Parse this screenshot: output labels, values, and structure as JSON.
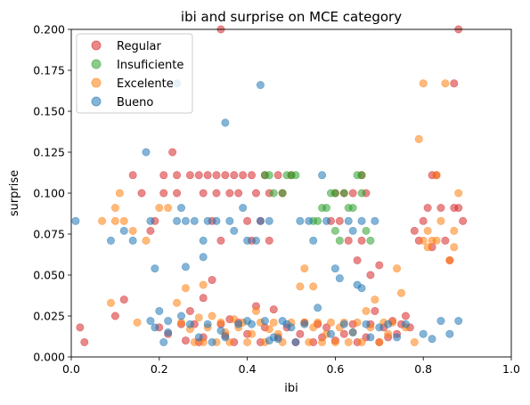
{
  "chart_data": {
    "type": "scatter",
    "title": "ibi and surprise on MCE category",
    "xlabel": "ibi",
    "ylabel": "surprise",
    "xlim": [
      0.0,
      1.0
    ],
    "ylim": [
      0.0,
      0.2
    ],
    "xticks": [
      "0.0",
      "0.2",
      "0.4",
      "0.6",
      "0.8",
      "1.0"
    ],
    "yticks": [
      "0.000",
      "0.025",
      "0.050",
      "0.075",
      "0.100",
      "0.125",
      "0.150",
      "0.175",
      "0.200"
    ],
    "grid": false,
    "legend_position": "top-left",
    "series": [
      {
        "name": "Regular",
        "color": "#d62728",
        "points": [
          [
            0.02,
            0.018
          ],
          [
            0.03,
            0.009
          ],
          [
            0.1,
            0.025
          ],
          [
            0.12,
            0.035
          ],
          [
            0.14,
            0.111
          ],
          [
            0.16,
            0.1
          ],
          [
            0.18,
            0.077
          ],
          [
            0.19,
            0.083
          ],
          [
            0.2,
            0.018
          ],
          [
            0.21,
            0.111
          ],
          [
            0.21,
            0.1
          ],
          [
            0.22,
            0.014
          ],
          [
            0.23,
            0.125
          ],
          [
            0.24,
            0.111
          ],
          [
            0.24,
            0.1
          ],
          [
            0.25,
            0.02
          ],
          [
            0.26,
            0.01
          ],
          [
            0.27,
            0.111
          ],
          [
            0.27,
            0.028
          ],
          [
            0.28,
            0.02
          ],
          [
            0.29,
            0.009
          ],
          [
            0.29,
            0.111
          ],
          [
            0.3,
            0.1
          ],
          [
            0.3,
            0.012
          ],
          [
            0.3,
            0.036
          ],
          [
            0.31,
            0.111
          ],
          [
            0.32,
            0.083
          ],
          [
            0.32,
            0.047
          ],
          [
            0.33,
            0.111
          ],
          [
            0.33,
            0.1
          ],
          [
            0.34,
            0.2
          ],
          [
            0.34,
            0.02
          ],
          [
            0.34,
            0.071
          ],
          [
            0.35,
            0.111
          ],
          [
            0.35,
            0.013
          ],
          [
            0.36,
            0.1
          ],
          [
            0.36,
            0.023
          ],
          [
            0.37,
            0.111
          ],
          [
            0.37,
            0.009
          ],
          [
            0.38,
            0.1
          ],
          [
            0.38,
            0.021
          ],
          [
            0.39,
            0.111
          ],
          [
            0.4,
            0.083
          ],
          [
            0.4,
            0.014
          ],
          [
            0.41,
            0.111
          ],
          [
            0.41,
            0.071
          ],
          [
            0.42,
            0.1
          ],
          [
            0.42,
            0.031
          ],
          [
            0.43,
            0.083
          ],
          [
            0.43,
            0.009
          ],
          [
            0.44,
            0.111
          ],
          [
            0.44,
            0.018
          ],
          [
            0.45,
            0.1
          ],
          [
            0.45,
            0.071
          ],
          [
            0.46,
            0.029
          ],
          [
            0.47,
            0.111
          ],
          [
            0.47,
            0.012
          ],
          [
            0.48,
            0.1
          ],
          [
            0.49,
            0.018
          ],
          [
            0.5,
            0.111
          ],
          [
            0.51,
            0.009
          ],
          [
            0.52,
            0.014
          ],
          [
            0.53,
            0.021
          ],
          [
            0.55,
            0.009
          ],
          [
            0.56,
            0.02
          ],
          [
            0.57,
            0.012
          ],
          [
            0.58,
            0.018
          ],
          [
            0.59,
            0.083
          ],
          [
            0.6,
            0.1
          ],
          [
            0.6,
            0.01
          ],
          [
            0.61,
            0.083
          ],
          [
            0.62,
            0.1
          ],
          [
            0.62,
            0.014
          ],
          [
            0.63,
            0.071
          ],
          [
            0.64,
            0.1
          ],
          [
            0.64,
            0.02
          ],
          [
            0.65,
            0.059
          ],
          [
            0.65,
            0.009
          ],
          [
            0.66,
            0.111
          ],
          [
            0.66,
            0.071
          ],
          [
            0.67,
            0.1
          ],
          [
            0.67,
            0.012
          ],
          [
            0.68,
            0.05
          ],
          [
            0.68,
            0.02
          ],
          [
            0.69,
            0.028
          ],
          [
            0.7,
            0.056
          ],
          [
            0.7,
            0.009
          ],
          [
            0.71,
            0.018
          ],
          [
            0.72,
            0.012
          ],
          [
            0.73,
            0.022
          ],
          [
            0.74,
            0.014
          ],
          [
            0.75,
            0.02
          ],
          [
            0.76,
            0.025
          ],
          [
            0.77,
            0.018
          ],
          [
            0.78,
            0.077
          ],
          [
            0.79,
            0.071
          ],
          [
            0.8,
            0.083
          ],
          [
            0.81,
            0.091
          ],
          [
            0.82,
            0.111
          ],
          [
            0.82,
            0.067
          ],
          [
            0.83,
            0.111
          ],
          [
            0.84,
            0.091
          ],
          [
            0.85,
            0.071
          ],
          [
            0.86,
            0.059
          ],
          [
            0.87,
            0.091
          ],
          [
            0.87,
            0.167
          ],
          [
            0.88,
            0.2
          ],
          [
            0.88,
            0.091
          ],
          [
            0.89,
            0.083
          ]
        ]
      },
      {
        "name": "Insuficiente",
        "color": "#2ca02c",
        "points": [
          [
            0.44,
            0.111
          ],
          [
            0.45,
            0.111
          ],
          [
            0.46,
            0.1
          ],
          [
            0.48,
            0.1
          ],
          [
            0.49,
            0.111
          ],
          [
            0.5,
            0.111
          ],
          [
            0.51,
            0.111
          ],
          [
            0.55,
            0.083
          ],
          [
            0.56,
            0.083
          ],
          [
            0.57,
            0.091
          ],
          [
            0.58,
            0.091
          ],
          [
            0.59,
            0.1
          ],
          [
            0.6,
            0.077
          ],
          [
            0.6,
            0.1
          ],
          [
            0.61,
            0.071
          ],
          [
            0.62,
            0.1
          ],
          [
            0.63,
            0.091
          ],
          [
            0.64,
            0.091
          ],
          [
            0.65,
            0.111
          ],
          [
            0.66,
            0.1
          ],
          [
            0.66,
            0.111
          ],
          [
            0.67,
            0.077
          ],
          [
            0.68,
            0.071
          ]
        ]
      },
      {
        "name": "Excelente",
        "color": "#ff7f0e",
        "points": [
          [
            0.07,
            0.083
          ],
          [
            0.09,
            0.033
          ],
          [
            0.1,
            0.091
          ],
          [
            0.1,
            0.083
          ],
          [
            0.11,
            0.1
          ],
          [
            0.12,
            0.083
          ],
          [
            0.14,
            0.077
          ],
          [
            0.15,
            0.021
          ],
          [
            0.17,
            0.071
          ],
          [
            0.2,
            0.091
          ],
          [
            0.22,
            0.091
          ],
          [
            0.24,
            0.033
          ],
          [
            0.25,
            0.021
          ],
          [
            0.26,
            0.042
          ],
          [
            0.27,
            0.017
          ],
          [
            0.28,
            0.009
          ],
          [
            0.29,
            0.024
          ],
          [
            0.3,
            0.009
          ],
          [
            0.3,
            0.044
          ],
          [
            0.31,
            0.018
          ],
          [
            0.32,
            0.025
          ],
          [
            0.33,
            0.009
          ],
          [
            0.34,
            0.021
          ],
          [
            0.35,
            0.015
          ],
          [
            0.36,
            0.009
          ],
          [
            0.37,
            0.023
          ],
          [
            0.38,
            0.018
          ],
          [
            0.39,
            0.021
          ],
          [
            0.4,
            0.009
          ],
          [
            0.41,
            0.014
          ],
          [
            0.42,
            0.028
          ],
          [
            0.43,
            0.021
          ],
          [
            0.44,
            0.009
          ],
          [
            0.45,
            0.017
          ],
          [
            0.46,
            0.021
          ],
          [
            0.47,
            0.014
          ],
          [
            0.48,
            0.009
          ],
          [
            0.5,
            0.021
          ],
          [
            0.52,
            0.043
          ],
          [
            0.53,
            0.054
          ],
          [
            0.53,
            0.021
          ],
          [
            0.54,
            0.009
          ],
          [
            0.55,
            0.018
          ],
          [
            0.55,
            0.043
          ],
          [
            0.56,
            0.021
          ],
          [
            0.57,
            0.009
          ],
          [
            0.58,
            0.014
          ],
          [
            0.59,
            0.021
          ],
          [
            0.6,
            0.009
          ],
          [
            0.61,
            0.018
          ],
          [
            0.62,
            0.021
          ],
          [
            0.63,
            0.009
          ],
          [
            0.64,
            0.015
          ],
          [
            0.65,
            0.021
          ],
          [
            0.66,
            0.009
          ],
          [
            0.67,
            0.028
          ],
          [
            0.68,
            0.018
          ],
          [
            0.69,
            0.035
          ],
          [
            0.7,
            0.009
          ],
          [
            0.71,
            0.021
          ],
          [
            0.72,
            0.014
          ],
          [
            0.73,
            0.021
          ],
          [
            0.74,
            0.054
          ],
          [
            0.75,
            0.039
          ],
          [
            0.76,
            0.018
          ],
          [
            0.78,
            0.009
          ],
          [
            0.79,
            0.133
          ],
          [
            0.8,
            0.167
          ],
          [
            0.8,
            0.071
          ],
          [
            0.81,
            0.077
          ],
          [
            0.81,
            0.067
          ],
          [
            0.82,
            0.071
          ],
          [
            0.83,
            0.111
          ],
          [
            0.83,
            0.071
          ],
          [
            0.84,
            0.083
          ],
          [
            0.85,
            0.167
          ],
          [
            0.86,
            0.059
          ],
          [
            0.87,
            0.077
          ],
          [
            0.87,
            0.067
          ],
          [
            0.88,
            0.1
          ]
        ]
      },
      {
        "name": "Bueno",
        "color": "#1f77b4",
        "points": [
          [
            0.01,
            0.083
          ],
          [
            0.09,
            0.071
          ],
          [
            0.12,
            0.077
          ],
          [
            0.14,
            0.071
          ],
          [
            0.17,
            0.125
          ],
          [
            0.18,
            0.083
          ],
          [
            0.18,
            0.022
          ],
          [
            0.19,
            0.018
          ],
          [
            0.19,
            0.054
          ],
          [
            0.2,
            0.028
          ],
          [
            0.21,
            0.009
          ],
          [
            0.22,
            0.022
          ],
          [
            0.22,
            0.015
          ],
          [
            0.24,
            0.167
          ],
          [
            0.24,
            0.083
          ],
          [
            0.25,
            0.091
          ],
          [
            0.25,
            0.025
          ],
          [
            0.26,
            0.055
          ],
          [
            0.26,
            0.083
          ],
          [
            0.27,
            0.02
          ],
          [
            0.28,
            0.083
          ],
          [
            0.29,
            0.012
          ],
          [
            0.3,
            0.071
          ],
          [
            0.3,
            0.061
          ],
          [
            0.31,
            0.083
          ],
          [
            0.31,
            0.02
          ],
          [
            0.32,
            0.009
          ],
          [
            0.33,
            0.083
          ],
          [
            0.34,
            0.016
          ],
          [
            0.35,
            0.143
          ],
          [
            0.35,
            0.012
          ],
          [
            0.36,
            0.083
          ],
          [
            0.37,
            0.077
          ],
          [
            0.38,
            0.02
          ],
          [
            0.39,
            0.091
          ],
          [
            0.4,
            0.071
          ],
          [
            0.4,
            0.022
          ],
          [
            0.41,
            0.02
          ],
          [
            0.42,
            0.071
          ],
          [
            0.43,
            0.166
          ],
          [
            0.43,
            0.083
          ],
          [
            0.44,
            0.022
          ],
          [
            0.45,
            0.083
          ],
          [
            0.45,
            0.01
          ],
          [
            0.46,
            0.012
          ],
          [
            0.47,
            0.011
          ],
          [
            0.48,
            0.022
          ],
          [
            0.49,
            0.02
          ],
          [
            0.5,
            0.018
          ],
          [
            0.51,
            0.009
          ],
          [
            0.52,
            0.083
          ],
          [
            0.53,
            0.02
          ],
          [
            0.54,
            0.083
          ],
          [
            0.55,
            0.071
          ],
          [
            0.56,
            0.03
          ],
          [
            0.57,
            0.111
          ],
          [
            0.58,
            0.083
          ],
          [
            0.59,
            0.014
          ],
          [
            0.6,
            0.054
          ],
          [
            0.61,
            0.048
          ],
          [
            0.62,
            0.02
          ],
          [
            0.63,
            0.083
          ],
          [
            0.64,
            0.077
          ],
          [
            0.64,
            0.015
          ],
          [
            0.65,
            0.044
          ],
          [
            0.66,
            0.042
          ],
          [
            0.66,
            0.083
          ],
          [
            0.67,
            0.02
          ],
          [
            0.68,
            0.012
          ],
          [
            0.69,
            0.083
          ],
          [
            0.7,
            0.018
          ],
          [
            0.72,
            0.02
          ],
          [
            0.74,
            0.012
          ],
          [
            0.76,
            0.02
          ],
          [
            0.8,
            0.014
          ],
          [
            0.82,
            0.011
          ],
          [
            0.84,
            0.022
          ],
          [
            0.86,
            0.014
          ],
          [
            0.88,
            0.022
          ]
        ]
      }
    ]
  }
}
